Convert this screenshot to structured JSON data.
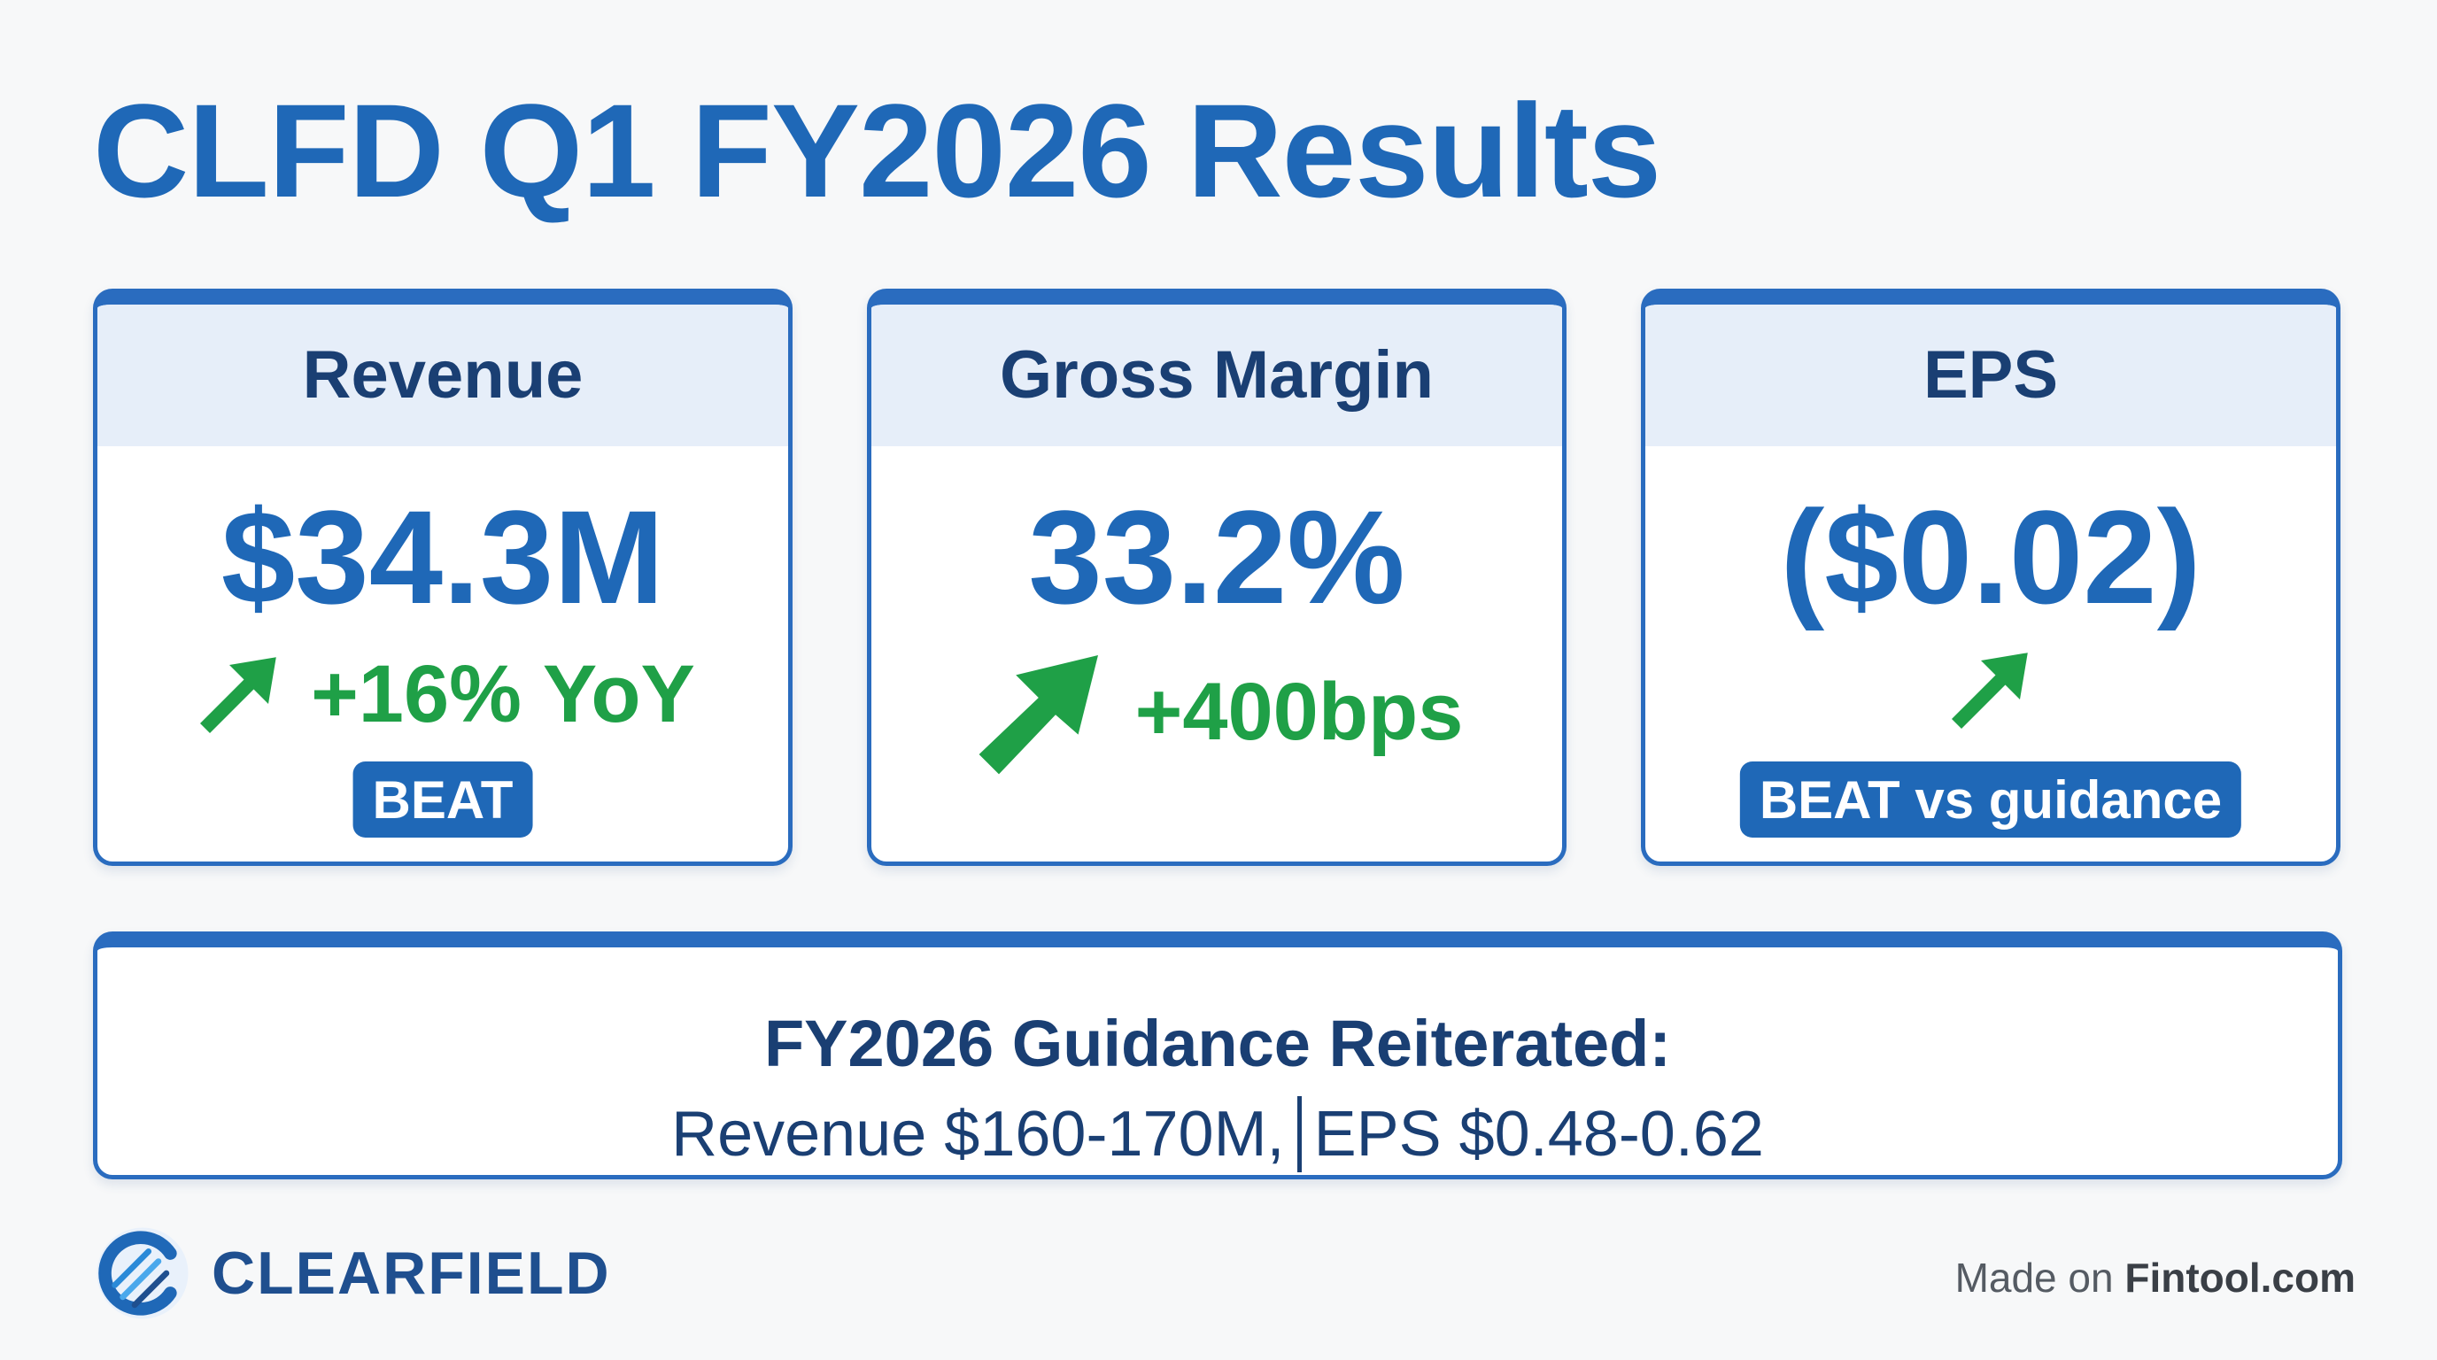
{
  "title": "CLFD Q1 FY2026 Results",
  "cards": [
    {
      "label": "Revenue",
      "value": "$34.3M",
      "change": "+16% YoY",
      "badge": "BEAT",
      "arrow_icon": "up-right-arrow-icon"
    },
    {
      "label": "Gross Margin",
      "value": "33.2%",
      "change": "+400bps",
      "arrow_icon": "up-right-arrow-icon"
    },
    {
      "label": "EPS",
      "value": "($0.02)",
      "badge": "BEAT vs guidance",
      "arrow_icon": "up-right-arrow-icon"
    }
  ],
  "guidance": {
    "title": "FY2026 Guidance Reiterated:",
    "revenue": "Revenue $160-170M,",
    "eps": "EPS $0.48-0.62"
  },
  "logo": {
    "name": "CLEARFIELD",
    "icon": "clearfield-logo-icon"
  },
  "footer": {
    "prefix": "Made on",
    "brand": "Fintool.com"
  },
  "colors": {
    "primary_blue": "#1f68b7",
    "dark_navy": "#1a3f73",
    "positive_green": "#1fa047",
    "card_header_bg": "#e6eef9",
    "page_bg": "#f7f8f9"
  }
}
